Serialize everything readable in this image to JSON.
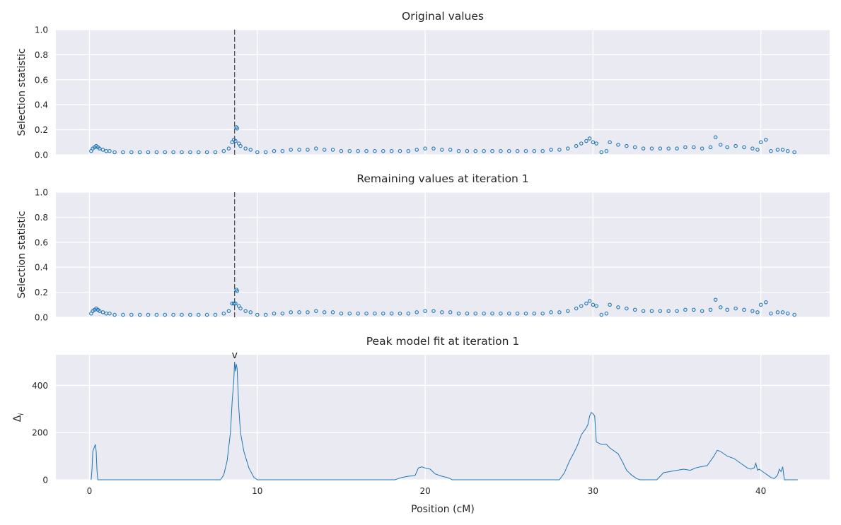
{
  "chart_data": [
    {
      "type": "scatter",
      "title": "Original values",
      "xlabel": "",
      "ylabel": "Selection statistic",
      "xlim": [
        -2.0,
        44.1
      ],
      "ylim": [
        0.0,
        1.0
      ],
      "x_ticks": [
        0,
        10,
        20,
        30,
        40
      ],
      "y_ticks": [
        0.0,
        0.2,
        0.4,
        0.6,
        0.8,
        1.0
      ],
      "y_tick_labels": [
        "0.0",
        "0.2",
        "0.4",
        "0.6",
        "0.8",
        "1.0"
      ],
      "grid": true,
      "peak_line_x": 8.65,
      "series": [
        {
          "color": "#1f77b4",
          "x": [
            0.1,
            0.2,
            0.3,
            0.4,
            0.5,
            0.6,
            0.8,
            1.0,
            1.2,
            1.5,
            2.0,
            2.5,
            3.0,
            3.5,
            4.0,
            4.5,
            5.0,
            5.5,
            6.0,
            6.5,
            7.0,
            7.5,
            8.0,
            8.3,
            8.5,
            8.6,
            8.7,
            8.75,
            8.8,
            8.9,
            9.0,
            9.3,
            9.6,
            10.0,
            10.5,
            11.0,
            11.5,
            12.0,
            12.5,
            13.0,
            13.5,
            14.0,
            14.5,
            15.0,
            15.5,
            16.0,
            16.5,
            17.0,
            17.5,
            18.0,
            18.5,
            19.0,
            19.5,
            20.0,
            20.5,
            21.0,
            21.5,
            22.0,
            22.5,
            23.0,
            23.5,
            24.0,
            24.5,
            25.0,
            25.5,
            26.0,
            26.5,
            27.0,
            27.5,
            28.0,
            28.5,
            29.0,
            29.3,
            29.6,
            29.8,
            30.0,
            30.2,
            30.5,
            30.8,
            31.0,
            31.5,
            32.0,
            32.5,
            33.0,
            33.5,
            34.0,
            34.5,
            35.0,
            35.5,
            36.0,
            36.5,
            37.0,
            37.3,
            37.6,
            38.0,
            38.5,
            39.0,
            39.5,
            39.8,
            40.0,
            40.3,
            40.6,
            41.0,
            41.3,
            41.6,
            42.0
          ],
          "y": [
            0.03,
            0.05,
            0.06,
            0.07,
            0.06,
            0.05,
            0.04,
            0.03,
            0.03,
            0.02,
            0.02,
            0.02,
            0.02,
            0.02,
            0.02,
            0.02,
            0.02,
            0.02,
            0.02,
            0.02,
            0.02,
            0.02,
            0.03,
            0.05,
            0.1,
            0.12,
            0.11,
            0.22,
            0.21,
            0.09,
            0.07,
            0.05,
            0.04,
            0.02,
            0.02,
            0.03,
            0.03,
            0.04,
            0.04,
            0.04,
            0.05,
            0.04,
            0.04,
            0.03,
            0.03,
            0.03,
            0.03,
            0.03,
            0.03,
            0.03,
            0.03,
            0.03,
            0.04,
            0.05,
            0.05,
            0.04,
            0.04,
            0.03,
            0.03,
            0.03,
            0.03,
            0.03,
            0.03,
            0.03,
            0.03,
            0.03,
            0.03,
            0.03,
            0.04,
            0.04,
            0.05,
            0.07,
            0.09,
            0.11,
            0.13,
            0.1,
            0.09,
            0.02,
            0.03,
            0.1,
            0.08,
            0.07,
            0.06,
            0.05,
            0.05,
            0.05,
            0.05,
            0.05,
            0.06,
            0.06,
            0.05,
            0.06,
            0.14,
            0.08,
            0.06,
            0.07,
            0.06,
            0.05,
            0.04,
            0.1,
            0.12,
            0.03,
            0.04,
            0.04,
            0.03,
            0.02
          ]
        }
      ]
    },
    {
      "type": "scatter",
      "title": "Remaining values at iteration 1",
      "xlabel": "",
      "ylabel": "Selection statistic",
      "xlim": [
        -2.0,
        44.1
      ],
      "ylim": [
        0.0,
        1.0
      ],
      "x_ticks": [
        0,
        10,
        20,
        30,
        40
      ],
      "y_ticks": [
        0.0,
        0.2,
        0.4,
        0.6,
        0.8,
        1.0
      ],
      "y_tick_labels": [
        "0.0",
        "0.2",
        "0.4",
        "0.6",
        "0.8",
        "1.0"
      ],
      "grid": true,
      "peak_line_x": 8.65,
      "series": [
        {
          "color": "#1f77b4",
          "x": [
            0.1,
            0.2,
            0.3,
            0.4,
            0.5,
            0.6,
            0.8,
            1.0,
            1.2,
            1.5,
            2.0,
            2.5,
            3.0,
            3.5,
            4.0,
            4.5,
            5.0,
            5.5,
            6.0,
            6.5,
            7.0,
            7.5,
            8.0,
            8.3,
            8.5,
            8.6,
            8.7,
            8.75,
            8.8,
            8.9,
            9.0,
            9.3,
            9.6,
            10.0,
            10.5,
            11.0,
            11.5,
            12.0,
            12.5,
            13.0,
            13.5,
            14.0,
            14.5,
            15.0,
            15.5,
            16.0,
            16.5,
            17.0,
            17.5,
            18.0,
            18.5,
            19.0,
            19.5,
            20.0,
            20.5,
            21.0,
            21.5,
            22.0,
            22.5,
            23.0,
            23.5,
            24.0,
            24.5,
            25.0,
            25.5,
            26.0,
            26.5,
            27.0,
            27.5,
            28.0,
            28.5,
            29.0,
            29.3,
            29.6,
            29.8,
            30.0,
            30.2,
            30.5,
            30.8,
            31.0,
            31.5,
            32.0,
            32.5,
            33.0,
            33.5,
            34.0,
            34.5,
            35.0,
            35.5,
            36.0,
            36.5,
            37.0,
            37.3,
            37.6,
            38.0,
            38.5,
            39.0,
            39.5,
            39.8,
            40.0,
            40.3,
            40.6,
            41.0,
            41.3,
            41.6,
            42.0
          ],
          "y": [
            0.03,
            0.05,
            0.06,
            0.07,
            0.06,
            0.05,
            0.04,
            0.03,
            0.03,
            0.02,
            0.02,
            0.02,
            0.02,
            0.02,
            0.02,
            0.02,
            0.02,
            0.02,
            0.02,
            0.02,
            0.02,
            0.02,
            0.03,
            0.05,
            0.11,
            0.11,
            0.11,
            0.22,
            0.21,
            0.09,
            0.07,
            0.05,
            0.04,
            0.02,
            0.02,
            0.03,
            0.03,
            0.04,
            0.04,
            0.04,
            0.05,
            0.04,
            0.04,
            0.03,
            0.03,
            0.03,
            0.03,
            0.03,
            0.03,
            0.03,
            0.03,
            0.03,
            0.04,
            0.05,
            0.05,
            0.04,
            0.04,
            0.03,
            0.03,
            0.03,
            0.03,
            0.03,
            0.03,
            0.03,
            0.03,
            0.03,
            0.03,
            0.03,
            0.04,
            0.04,
            0.05,
            0.07,
            0.09,
            0.11,
            0.13,
            0.1,
            0.09,
            0.02,
            0.03,
            0.1,
            0.08,
            0.07,
            0.06,
            0.05,
            0.05,
            0.05,
            0.05,
            0.05,
            0.06,
            0.06,
            0.05,
            0.06,
            0.14,
            0.08,
            0.06,
            0.07,
            0.06,
            0.05,
            0.04,
            0.1,
            0.12,
            0.03,
            0.04,
            0.04,
            0.03,
            0.02
          ]
        }
      ]
    },
    {
      "type": "line",
      "title": "Peak model fit at iteration 1",
      "xlabel": "Position (cM)",
      "ylabel": "Δ",
      "ylabel_subscript": "i",
      "xlim": [
        -2.0,
        44.1
      ],
      "ylim": [
        0,
        530
      ],
      "x_ticks": [
        0,
        10,
        20,
        30,
        40
      ],
      "x_tick_labels": [
        "0",
        "10",
        "20",
        "30",
        "40"
      ],
      "y_ticks": [
        0,
        200,
        400
      ],
      "y_tick_labels": [
        "0",
        "200",
        "400"
      ],
      "grid": true,
      "peak_marker": {
        "x": 8.65,
        "label": "v"
      },
      "series": [
        {
          "color": "#1f77b4",
          "x": [
            0.1,
            0.15,
            0.2,
            0.3,
            0.35,
            0.4,
            0.45,
            0.5,
            7.8,
            8.0,
            8.2,
            8.4,
            8.5,
            8.6,
            8.65,
            8.7,
            8.75,
            8.8,
            8.85,
            8.9,
            9.0,
            9.2,
            9.5,
            9.8,
            10.0,
            18.2,
            18.6,
            19.0,
            19.4,
            19.6,
            19.8,
            20.0,
            20.3,
            20.6,
            21.0,
            21.3,
            21.5,
            21.6,
            28.0,
            28.3,
            28.6,
            28.9,
            29.1,
            29.3,
            29.5,
            29.6,
            29.7,
            29.8,
            29.9,
            30.0,
            30.1,
            30.2,
            30.5,
            30.8,
            31.0,
            31.5,
            31.8,
            32.0,
            32.3,
            32.6,
            32.8,
            33.8,
            34.2,
            34.6,
            35.0,
            35.4,
            35.8,
            36.1,
            36.4,
            36.8,
            37.0,
            37.2,
            37.4,
            37.6,
            38.0,
            38.4,
            38.8,
            39.2,
            39.4,
            39.6,
            39.7,
            39.8,
            39.9,
            40.0,
            40.2,
            40.4,
            40.6,
            40.8,
            41.0,
            41.1,
            41.2,
            41.3,
            41.4,
            42.0,
            42.2
          ],
          "y": [
            0,
            40,
            120,
            140,
            150,
            120,
            40,
            0,
            0,
            20,
            80,
            200,
            330,
            420,
            500,
            460,
            490,
            470,
            380,
            300,
            200,
            120,
            50,
            10,
            0,
            0,
            10,
            15,
            18,
            50,
            55,
            50,
            45,
            25,
            15,
            10,
            5,
            0,
            0,
            30,
            80,
            120,
            150,
            190,
            210,
            220,
            235,
            270,
            285,
            280,
            270,
            160,
            150,
            150,
            135,
            110,
            70,
            40,
            20,
            5,
            0,
            0,
            30,
            35,
            40,
            45,
            40,
            50,
            55,
            60,
            80,
            100,
            125,
            120,
            100,
            90,
            70,
            50,
            45,
            50,
            70,
            40,
            45,
            40,
            30,
            20,
            10,
            5,
            20,
            45,
            35,
            55,
            0,
            0,
            0
          ]
        }
      ]
    }
  ]
}
